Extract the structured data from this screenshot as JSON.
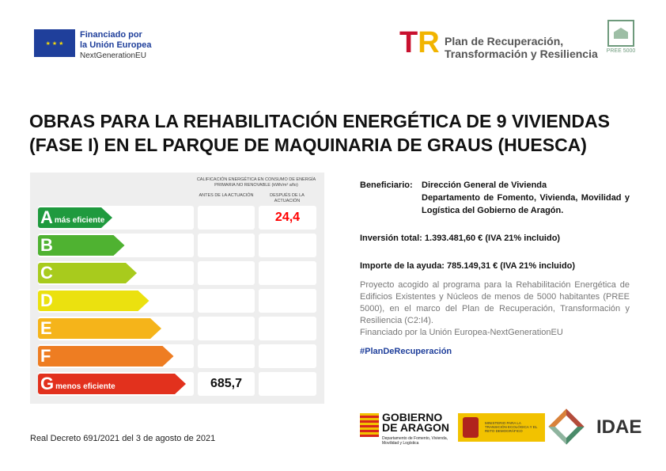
{
  "header": {
    "eu": {
      "line1": "Financiado por",
      "line2": "la Unión Europea",
      "line3": "NextGenerationEU"
    },
    "plan": {
      "line1": "Plan de Recuperación,",
      "line2": "Transformación y Resiliencia"
    },
    "pree": {
      "label": "PREE 5000"
    }
  },
  "title": {
    "line1": "OBRAS PARA LA REHABILITACIÓN ENERGÉTICA DE 9 VIVIENDAS",
    "line2": "(FASE I) EN EL PARQUE DE MAQUINARIA DE GRAUS (HUESCA)"
  },
  "energy_label": {
    "header": "CALIFICACIÓN ENERGÉTICA EN CONSUMO DE ENERGÍA PRIMARIA NO RENOVABLE (kWh/m² año)",
    "col_before": "ANTES DE LA ACTUACIÓN",
    "col_after": "DESPUÉS DE LA ACTUACIÓN",
    "ratings": [
      {
        "letter": "A",
        "sub": "más eficiente",
        "color": "#1f9a3e",
        "before": "",
        "after": "24,4"
      },
      {
        "letter": "B",
        "sub": "",
        "color": "#4fb231",
        "before": "",
        "after": ""
      },
      {
        "letter": "C",
        "sub": "",
        "color": "#a8cb1d",
        "before": "",
        "after": ""
      },
      {
        "letter": "D",
        "sub": "",
        "color": "#ebe10f",
        "before": "",
        "after": ""
      },
      {
        "letter": "E",
        "sub": "",
        "color": "#f5b41a",
        "before": "",
        "after": ""
      },
      {
        "letter": "F",
        "sub": "",
        "color": "#ee7d22",
        "before": "",
        "after": ""
      },
      {
        "letter": "G",
        "sub": "menos eficiente",
        "color": "#e2311d",
        "before": "685,7",
        "after": ""
      }
    ]
  },
  "info": {
    "beneficiary_label": "Beneficiario:",
    "beneficiary_1": "Dirección General de Vivienda",
    "beneficiary_2": "Departamento de Fomento, Vivienda, Movilidad y Logística del Gobierno de Aragón.",
    "investment": "Inversión total: 1.393.481,60 € (IVA 21% incluido)",
    "aid": "Importe de la ayuda:  785.149,31 € (IVA 21% incluido)",
    "description": "Proyecto acogido al programa para la Rehabilitación Energética de Edificios Existentes y Núcleos de menos de 5000 habitantes (PREE 5000), en el marco del Plan de Recuperación, Transformación y Resiliencia (C2:I4).",
    "funded": "Financiado por la Unión Europea-NextGenerationEU",
    "hashtag": "#PlanDeRecuperación"
  },
  "footer": {
    "decree": "Real Decreto 691/2021 del 3 de agosto de 2021",
    "ga": {
      "line1": "GOBIERNO",
      "line2": "DE ARAGON",
      "sub": "Departamento de Fomento, Vivienda, Movilidad y Logística"
    },
    "mitd": "MINISTERIO PARA LA TRANSICIÓN ECOLÓGICA Y EL RETO DEMOGRÁFICO",
    "idae": "IDAE"
  }
}
